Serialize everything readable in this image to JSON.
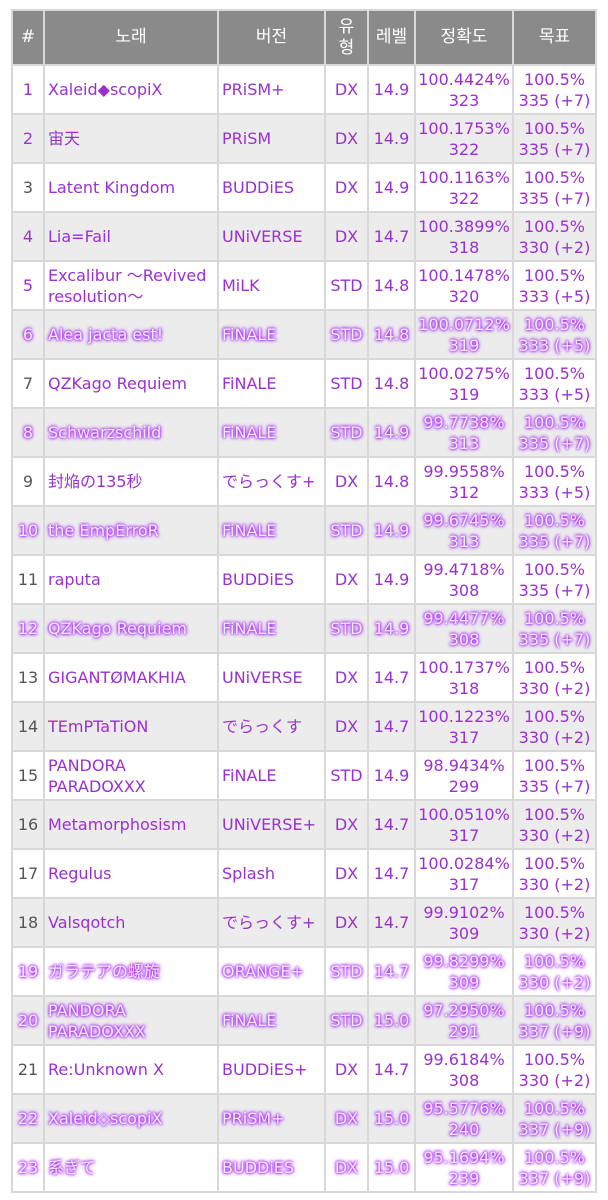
{
  "table": {
    "header": [
      "#",
      "노래",
      "버전",
      "유\n형",
      "레벨",
      "정확도",
      "목표"
    ],
    "rows": [
      [
        "1",
        "Xaleid◆scopiX",
        "PRiSM+",
        "DX",
        "14.9",
        "100.4424%",
        "323",
        "100.5%",
        "335 (+7)"
      ],
      [
        "2",
        "宙天",
        "PRiSM",
        "DX",
        "14.9",
        "100.1753%",
        "322",
        "100.5%",
        "335 (+7)"
      ],
      [
        "3",
        "Latent Kingdom",
        "BUDDiES",
        "DX",
        "14.9",
        "100.1163%",
        "322",
        "100.5%",
        "335 (+7)"
      ],
      [
        "4",
        "Lia=Fail",
        "UNiVERSE",
        "DX",
        "14.7",
        "100.3899%",
        "318",
        "100.5%",
        "330 (+2)"
      ],
      [
        "5",
        "Excalibur ～Revived resolution～",
        "MiLK",
        "STD",
        "14.8",
        "100.1478%",
        "320",
        "100.5%",
        "333 (+5)"
      ],
      [
        "6",
        "Alea jacta est!",
        "FiNALE",
        "STD",
        "14.8",
        "100.0712%",
        "319",
        "100.5%",
        "333 (+5)"
      ],
      [
        "7",
        "QZKago Requiem",
        "FiNALE",
        "STD",
        "14.8",
        "100.0275%",
        "319",
        "100.5%",
        "333 (+5)"
      ],
      [
        "8",
        "Schwarzschild",
        "FiNALE",
        "STD",
        "14.9",
        "99.7738%",
        "313",
        "100.5%",
        "335 (+7)"
      ],
      [
        "9",
        "封焔の135秒",
        "でらっくす+",
        "DX",
        "14.8",
        "99.9558%",
        "312",
        "100.5%",
        "333 (+5)"
      ],
      [
        "10",
        "the EmpErroR",
        "FiNALE",
        "STD",
        "14.9",
        "99.6745%",
        "313",
        "100.5%",
        "335 (+7)"
      ],
      [
        "11",
        "raputa",
        "BUDDiES",
        "DX",
        "14.9",
        "99.4718%",
        "308",
        "100.5%",
        "335 (+7)"
      ],
      [
        "12",
        "QZKago Requiem",
        "FiNALE",
        "STD",
        "14.9",
        "99.4477%",
        "308",
        "100.5%",
        "335 (+7)"
      ],
      [
        "13",
        "GIGANTØMAKHIA",
        "UNiVERSE",
        "DX",
        "14.7",
        "100.1737%",
        "318",
        "100.5%",
        "330 (+2)"
      ],
      [
        "14",
        "TEmPTaTiON",
        "でらっくす",
        "DX",
        "14.7",
        "100.1223%",
        "317",
        "100.5%",
        "330 (+2)"
      ],
      [
        "15",
        "PANDORA PARADOXXX",
        "FiNALE",
        "STD",
        "14.9",
        "98.9434%",
        "299",
        "100.5%",
        "335 (+7)"
      ],
      [
        "16",
        "Metamorphosism",
        "UNiVERSE+",
        "DX",
        "14.7",
        "100.0510%",
        "317",
        "100.5%",
        "330 (+2)"
      ],
      [
        "17",
        "Regulus",
        "Splash",
        "DX",
        "14.7",
        "100.0284%",
        "317",
        "100.5%",
        "330 (+2)"
      ],
      [
        "18",
        "Valsqotch",
        "でらっくす+",
        "DX",
        "14.7",
        "99.9102%",
        "309",
        "100.5%",
        "330 (+2)"
      ],
      [
        "19",
        "ガラテアの螺旋",
        "ORANGE+",
        "STD",
        "14.7",
        "99.8299%",
        "309",
        "100.5%",
        "330 (+2)"
      ],
      [
        "20",
        "PANDORA PARADOXXX",
        "FiNALE",
        "STD",
        "15.0",
        "97.2950%",
        "291",
        "100.5%",
        "337 (+9)"
      ],
      [
        "21",
        "Re:Unknown X",
        "BUDDiES+",
        "DX",
        "14.7",
        "99.6184%",
        "308",
        "100.5%",
        "330 (+2)"
      ],
      [
        "22",
        "Xaleid◇scopiX",
        "PRiSM+",
        "DX",
        "15.0",
        "95.5776%",
        "240",
        "100.5%",
        "337 (+9)"
      ],
      [
        "23",
        "系ぎて",
        "BUDDiES",
        "DX",
        "15.0",
        "95.1694%",
        "239",
        "100.5%",
        "337 (+9)"
      ]
    ]
  }
}
